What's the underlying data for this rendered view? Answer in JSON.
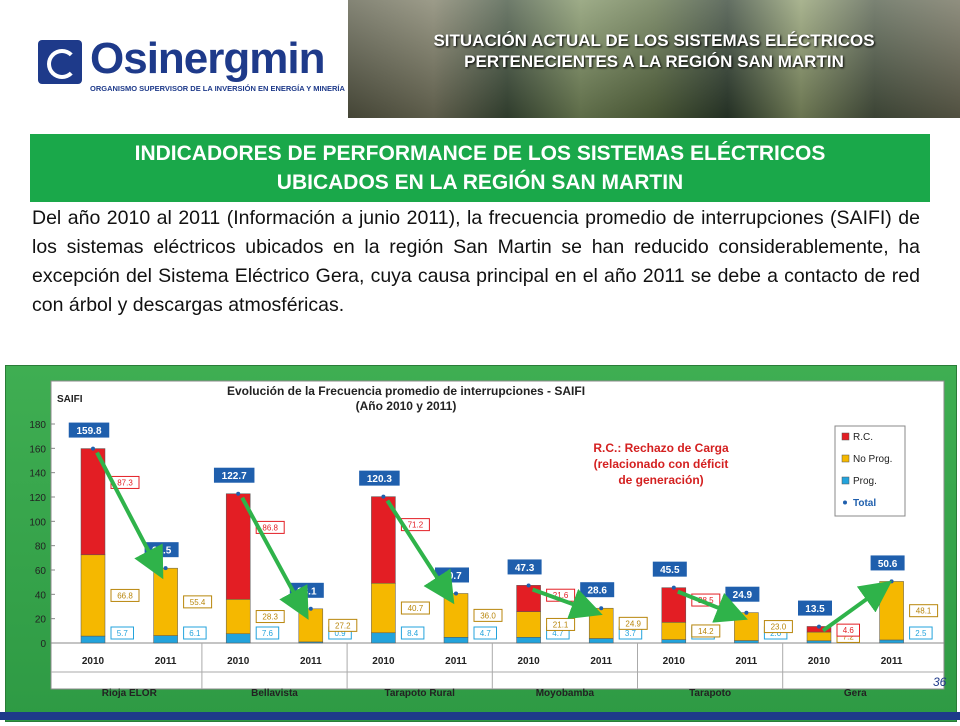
{
  "header": {
    "logo_name": "Osinergmin",
    "logo_subtitle": "ORGANISMO SUPERVISOR DE LA INVERSIÓN EN ENERGÍA Y MINERÍA",
    "title_line1": "SITUACIÓN ACTUAL DE LOS SISTEMAS ELÉCTRICOS",
    "title_line2": "PERTENECIENTES A LA REGIÓN SAN MARTIN"
  },
  "band": {
    "line1": "INDICADORES DE PERFORMANCE DE LOS SISTEMAS ELÉCTRICOS",
    "line2": "UBICADOS EN LA REGIÓN SAN MARTIN"
  },
  "paragraph": "Del año 2010 al 2011 (Información a junio 2011), la frecuencia promedio de interrupciones (SAIFI) de los sistemas eléctricos ubicados en la región San Martin se han reducido considerablemente, ha excepción del Sistema Eléctrico Gera, cuya causa principal en el año 2011 se debe a contacto de red con árbol y descargas atmosféricas.",
  "page_number": "36",
  "colors": {
    "rc": "#e31e24",
    "noprog": "#f5b800",
    "prog": "#23a3dc",
    "total_label_bg": "#1f5fad",
    "arrow": "#2fb34a"
  },
  "chart_data": {
    "type": "bar",
    "stacked": true,
    "title_line1": "Evolución de la Frecuencia promedio de interrupciones - SAIFI",
    "title_line2": "(Año 2010 y 2011)",
    "ylabel": "SAIFI",
    "ylim": [
      0,
      180
    ],
    "yticks": [
      0,
      20,
      40,
      60,
      80,
      100,
      120,
      140,
      160,
      180
    ],
    "groups": [
      "Rioja ELOR",
      "Bellavista",
      "Tarapoto Rural",
      "Moyobamba",
      "Tarapoto",
      "Gera"
    ],
    "categories": [
      "2010",
      "2011",
      "2010",
      "2011",
      "2010",
      "2011",
      "2010",
      "2011",
      "2010",
      "2011",
      "2010",
      "2011"
    ],
    "series": [
      {
        "name": "Prog.",
        "values": [
          5.7,
          6.1,
          7.6,
          0.9,
          8.4,
          4.7,
          4.7,
          3.7,
          2.8,
          2.0,
          1.8,
          2.5
        ]
      },
      {
        "name": "No Prog.",
        "values": [
          66.8,
          55.4,
          28.3,
          27.2,
          40.7,
          36.0,
          21.1,
          24.9,
          14.2,
          23.0,
          7.2,
          48.1
        ]
      },
      {
        "name": "R.C.",
        "values": [
          87.3,
          null,
          86.8,
          null,
          71.2,
          null,
          21.6,
          null,
          28.5,
          null,
          4.6,
          null
        ]
      }
    ],
    "totals": [
      159.8,
      61.5,
      122.7,
      28.1,
      120.3,
      40.7,
      47.3,
      28.6,
      45.5,
      24.9,
      13.5,
      50.6
    ],
    "total_series_name": "Total",
    "annotation_line1": "R.C.: Rechazo de Carga",
    "annotation_line2": "(relacionado con déficit",
    "annotation_line3": "de generación)",
    "legend_position": "top-right"
  }
}
